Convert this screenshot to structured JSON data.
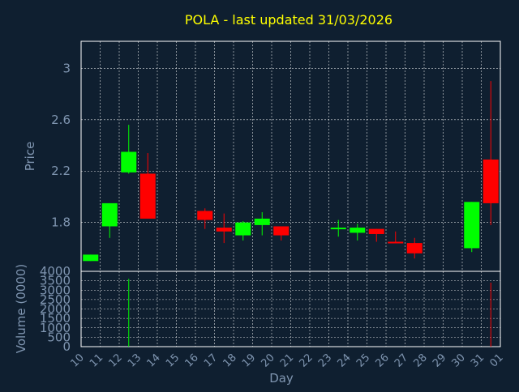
{
  "colors": {
    "background": "#0f1f30",
    "frame": "#ffffff",
    "grid": "#ffffff",
    "title": "#ffff00",
    "axis_text": "#7f95b0",
    "up": "#00ff00",
    "down": "#ff0000"
  },
  "chart_data": {
    "type": "candlestick",
    "title": "POLA - last updated 31/03/2026",
    "xlabel": "Day",
    "price_panel": {
      "ylabel": "Price",
      "ylim": [
        1.42,
        3.21
      ],
      "y_ticks": [
        {
          "value": 1.8,
          "label": "1.8"
        },
        {
          "value": 2.2,
          "label": "2.2"
        },
        {
          "value": 2.6,
          "label": "2.6"
        },
        {
          "value": 3.0,
          "label": "3"
        }
      ],
      "grid": true
    },
    "volume_panel": {
      "ylabel": "Volume (0000)",
      "ylim": [
        0,
        4000
      ],
      "y_ticks": [
        {
          "value": 0,
          "label": "0"
        },
        {
          "value": 500,
          "label": "500"
        },
        {
          "value": 1000,
          "label": "1000"
        },
        {
          "value": 1500,
          "label": "1500"
        },
        {
          "value": 2000,
          "label": "2000"
        },
        {
          "value": 2500,
          "label": "2500"
        },
        {
          "value": 3000,
          "label": "3000"
        },
        {
          "value": 3500,
          "label": "3500"
        },
        {
          "value": 4000,
          "label": "4000"
        }
      ],
      "grid": true
    },
    "x_ticks": [
      "10",
      "11",
      "12",
      "13",
      "14",
      "15",
      "16",
      "17",
      "18",
      "19",
      "20",
      "21",
      "22",
      "23",
      "24",
      "25",
      "26",
      "27",
      "28",
      "29",
      "30",
      "31",
      "01"
    ],
    "candles": [
      {
        "x": 0.0,
        "open": 1.5,
        "close": 1.55,
        "high": 1.55,
        "low": 1.5,
        "volume": 0
      },
      {
        "x": 1.0,
        "open": 1.77,
        "close": 1.95,
        "high": 1.95,
        "low": 1.68,
        "volume": 0
      },
      {
        "x": 2.0,
        "open": 2.19,
        "close": 2.35,
        "high": 2.56,
        "low": 2.18,
        "volume": 3600
      },
      {
        "x": 3.0,
        "open": 2.18,
        "close": 1.83,
        "high": 2.34,
        "low": 1.83,
        "volume": 0
      },
      {
        "x": 6.0,
        "open": 1.89,
        "close": 1.82,
        "high": 1.91,
        "low": 1.75,
        "volume": 0
      },
      {
        "x": 7.0,
        "open": 1.76,
        "close": 1.73,
        "high": 1.87,
        "low": 1.64,
        "volume": 0
      },
      {
        "x": 8.0,
        "open": 1.7,
        "close": 1.8,
        "high": 1.81,
        "low": 1.66,
        "volume": 0
      },
      {
        "x": 9.0,
        "open": 1.78,
        "close": 1.83,
        "high": 1.88,
        "low": 1.7,
        "volume": 0
      },
      {
        "x": 10.0,
        "open": 1.77,
        "close": 1.7,
        "high": 1.77,
        "low": 1.66,
        "volume": 0
      },
      {
        "x": 13.0,
        "open": 1.75,
        "close": 1.76,
        "high": 1.82,
        "low": 1.69,
        "volume": 0
      },
      {
        "x": 14.0,
        "open": 1.72,
        "close": 1.76,
        "high": 1.79,
        "low": 1.66,
        "volume": 0
      },
      {
        "x": 15.0,
        "open": 1.75,
        "close": 1.71,
        "high": 1.75,
        "low": 1.65,
        "volume": 0
      },
      {
        "x": 16.0,
        "open": 1.65,
        "close": 1.64,
        "high": 1.73,
        "low": 1.64,
        "volume": 0
      },
      {
        "x": 17.0,
        "open": 1.64,
        "close": 1.56,
        "high": 1.68,
        "low": 1.52,
        "volume": 0
      },
      {
        "x": 20.0,
        "open": 1.6,
        "close": 1.96,
        "high": 1.96,
        "low": 1.57,
        "volume": 0
      },
      {
        "x": 21.0,
        "open": 2.29,
        "close": 1.95,
        "high": 2.9,
        "low": 1.78,
        "volume": 3400
      }
    ]
  }
}
